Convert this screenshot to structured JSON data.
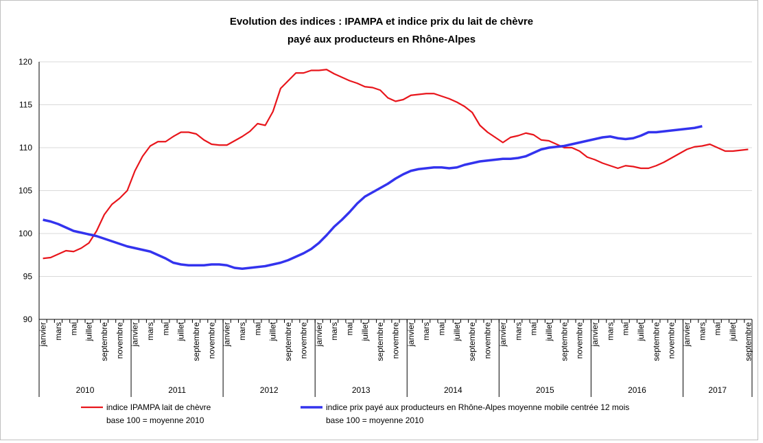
{
  "chart_data": {
    "type": "line",
    "title": "Evolution des indices : IPAMPA et indice prix du lait de chèvre",
    "subtitle": "payé aux producteurs en Rhône-Alpes",
    "categories": [
      "janvier",
      null,
      "mars",
      null,
      "mai",
      null,
      "juillet",
      null,
      "septembre",
      null,
      "novembre",
      null,
      "janvier",
      null,
      "mars",
      null,
      "mai",
      null,
      "juillet",
      null,
      "septembre",
      null,
      "novembre",
      null,
      "janvier",
      null,
      "mars",
      null,
      "mai",
      null,
      "juillet",
      null,
      "septembre",
      null,
      "novembre",
      null,
      "janvier",
      null,
      "mars",
      null,
      "mai",
      null,
      "juillet",
      null,
      "septembre",
      null,
      "novembre",
      null,
      "janvier",
      null,
      "mars",
      null,
      "mai",
      null,
      "juillet",
      null,
      "septembre",
      null,
      "novembre",
      null,
      "janvier",
      null,
      "mars",
      null,
      "mai",
      null,
      "juillet",
      null,
      "septembre",
      null,
      "novembre",
      null,
      "janvier",
      null,
      "mars",
      null,
      "mai",
      null,
      "juillet",
      null,
      "septembre",
      null,
      "novembre",
      null,
      "janvier",
      null,
      "mars",
      null,
      "mai",
      null,
      "juillet",
      null,
      "septembre"
    ],
    "years": [
      "2010",
      "2011",
      "2012",
      "2013",
      "2014",
      "2015",
      "2016",
      "2017"
    ],
    "ylim": [
      90,
      120
    ],
    "yticks": [
      90,
      95,
      100,
      105,
      110,
      115,
      120
    ],
    "grid": true,
    "series": [
      {
        "name": "indice IPAMPA lait de chèvre",
        "note": "base 100 = moyenne 2010",
        "color": "#e8151b",
        "values": [
          97.1,
          97.2,
          97.6,
          98.0,
          97.9,
          98.3,
          98.9,
          100.3,
          102.2,
          103.4,
          104.1,
          105.0,
          107.3,
          109.0,
          110.2,
          110.7,
          110.7,
          111.3,
          111.8,
          111.8,
          111.6,
          110.9,
          110.4,
          110.3,
          110.3,
          110.8,
          111.3,
          111.9,
          112.8,
          112.6,
          114.2,
          116.9,
          117.8,
          118.7,
          118.7,
          119.0,
          119.0,
          119.1,
          118.6,
          118.2,
          117.8,
          117.5,
          117.1,
          117.0,
          116.7,
          115.8,
          115.4,
          115.6,
          116.1,
          116.2,
          116.3,
          116.3,
          116.0,
          115.7,
          115.3,
          114.8,
          114.1,
          112.6,
          111.8,
          111.2,
          110.6,
          111.2,
          111.4,
          111.7,
          111.5,
          110.9,
          110.8,
          110.4,
          110.0,
          110.0,
          109.6,
          108.9,
          108.6,
          108.2,
          107.9,
          107.6,
          107.9,
          107.8,
          107.6,
          107.6,
          107.9,
          108.3,
          108.8,
          109.3,
          109.8,
          110.1,
          110.2,
          110.4,
          110.0,
          109.6,
          109.6,
          109.7,
          109.8
        ]
      },
      {
        "name": "indice prix payé aux producteurs en Rhône-Alpes moyenne mobile centrée 12 mois",
        "note": "base 100 = moyenne 2010",
        "color": "#3333ee",
        "values": [
          101.6,
          101.4,
          101.1,
          100.7,
          100.3,
          100.1,
          99.9,
          99.7,
          99.4,
          99.1,
          98.8,
          98.5,
          98.3,
          98.1,
          97.9,
          97.5,
          97.1,
          96.6,
          96.4,
          96.3,
          96.3,
          96.3,
          96.4,
          96.4,
          96.3,
          96.0,
          95.9,
          96.0,
          96.1,
          96.2,
          96.4,
          96.6,
          96.9,
          97.3,
          97.7,
          98.2,
          98.9,
          99.8,
          100.8,
          101.6,
          102.5,
          103.5,
          104.3,
          104.8,
          105.3,
          105.8,
          106.4,
          106.9,
          107.3,
          107.5,
          107.6,
          107.7,
          107.7,
          107.6,
          107.7,
          108.0,
          108.2,
          108.4,
          108.5,
          108.6,
          108.7,
          108.7,
          108.8,
          109.0,
          109.4,
          109.8,
          110.0,
          110.1,
          110.2,
          110.4,
          110.6,
          110.8,
          111.0,
          111.2,
          111.3,
          111.1,
          111.0,
          111.1,
          111.4,
          111.8,
          111.8,
          111.9,
          112.0,
          112.1,
          112.2,
          112.3,
          112.5,
          null,
          null,
          null,
          null,
          null,
          null
        ]
      }
    ]
  }
}
